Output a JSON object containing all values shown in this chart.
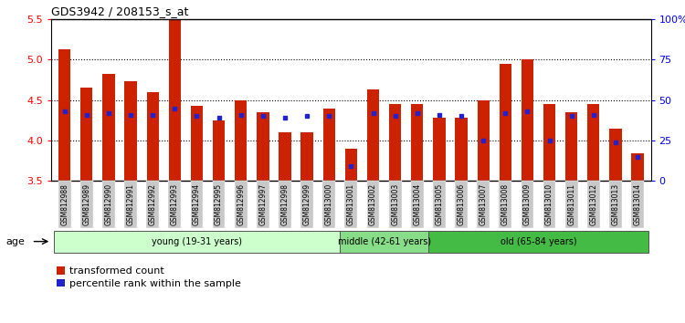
{
  "title": "GDS3942 / 208153_s_at",
  "samples": [
    "GSM812988",
    "GSM812989",
    "GSM812990",
    "GSM812991",
    "GSM812992",
    "GSM812993",
    "GSM812994",
    "GSM812995",
    "GSM812996",
    "GSM812997",
    "GSM812998",
    "GSM812999",
    "GSM813000",
    "GSM813001",
    "GSM813002",
    "GSM813003",
    "GSM813004",
    "GSM813005",
    "GSM813006",
    "GSM813007",
    "GSM813008",
    "GSM813009",
    "GSM813010",
    "GSM813011",
    "GSM813012",
    "GSM813013",
    "GSM813014"
  ],
  "transformed_count": [
    5.13,
    4.65,
    4.83,
    4.73,
    4.6,
    5.49,
    4.43,
    4.25,
    4.5,
    4.35,
    4.1,
    4.1,
    4.4,
    3.9,
    4.63,
    4.45,
    4.45,
    4.28,
    4.28,
    4.5,
    4.95,
    5.0,
    4.45,
    4.35,
    4.45,
    4.15,
    3.84
  ],
  "percentile_rank": [
    43,
    41,
    42,
    41,
    41,
    45,
    40,
    39,
    41,
    40,
    39,
    40,
    40,
    9,
    42,
    40,
    42,
    41,
    40,
    25,
    42,
    43,
    25,
    40,
    41,
    24,
    15
  ],
  "ylim_left": [
    3.5,
    5.5
  ],
  "ylim_right": [
    0,
    100
  ],
  "yticks_left": [
    3.5,
    4.0,
    4.5,
    5.0,
    5.5
  ],
  "yticks_right": [
    0,
    25,
    50,
    75,
    100
  ],
  "groups": [
    {
      "label": "young (19-31 years)",
      "start": 0,
      "end": 13,
      "color": "#ccffcc"
    },
    {
      "label": "middle (42-61 years)",
      "start": 13,
      "end": 17,
      "color": "#88dd88"
    },
    {
      "label": "old (65-84 years)",
      "start": 17,
      "end": 27,
      "color": "#44bb44"
    }
  ],
  "bar_color": "#cc2200",
  "dot_color": "#2222cc",
  "bar_width": 0.55,
  "legend_labels": [
    "transformed count",
    "percentile rank within the sample"
  ],
  "age_label": "age",
  "xtick_bg": "#c8c8c8"
}
